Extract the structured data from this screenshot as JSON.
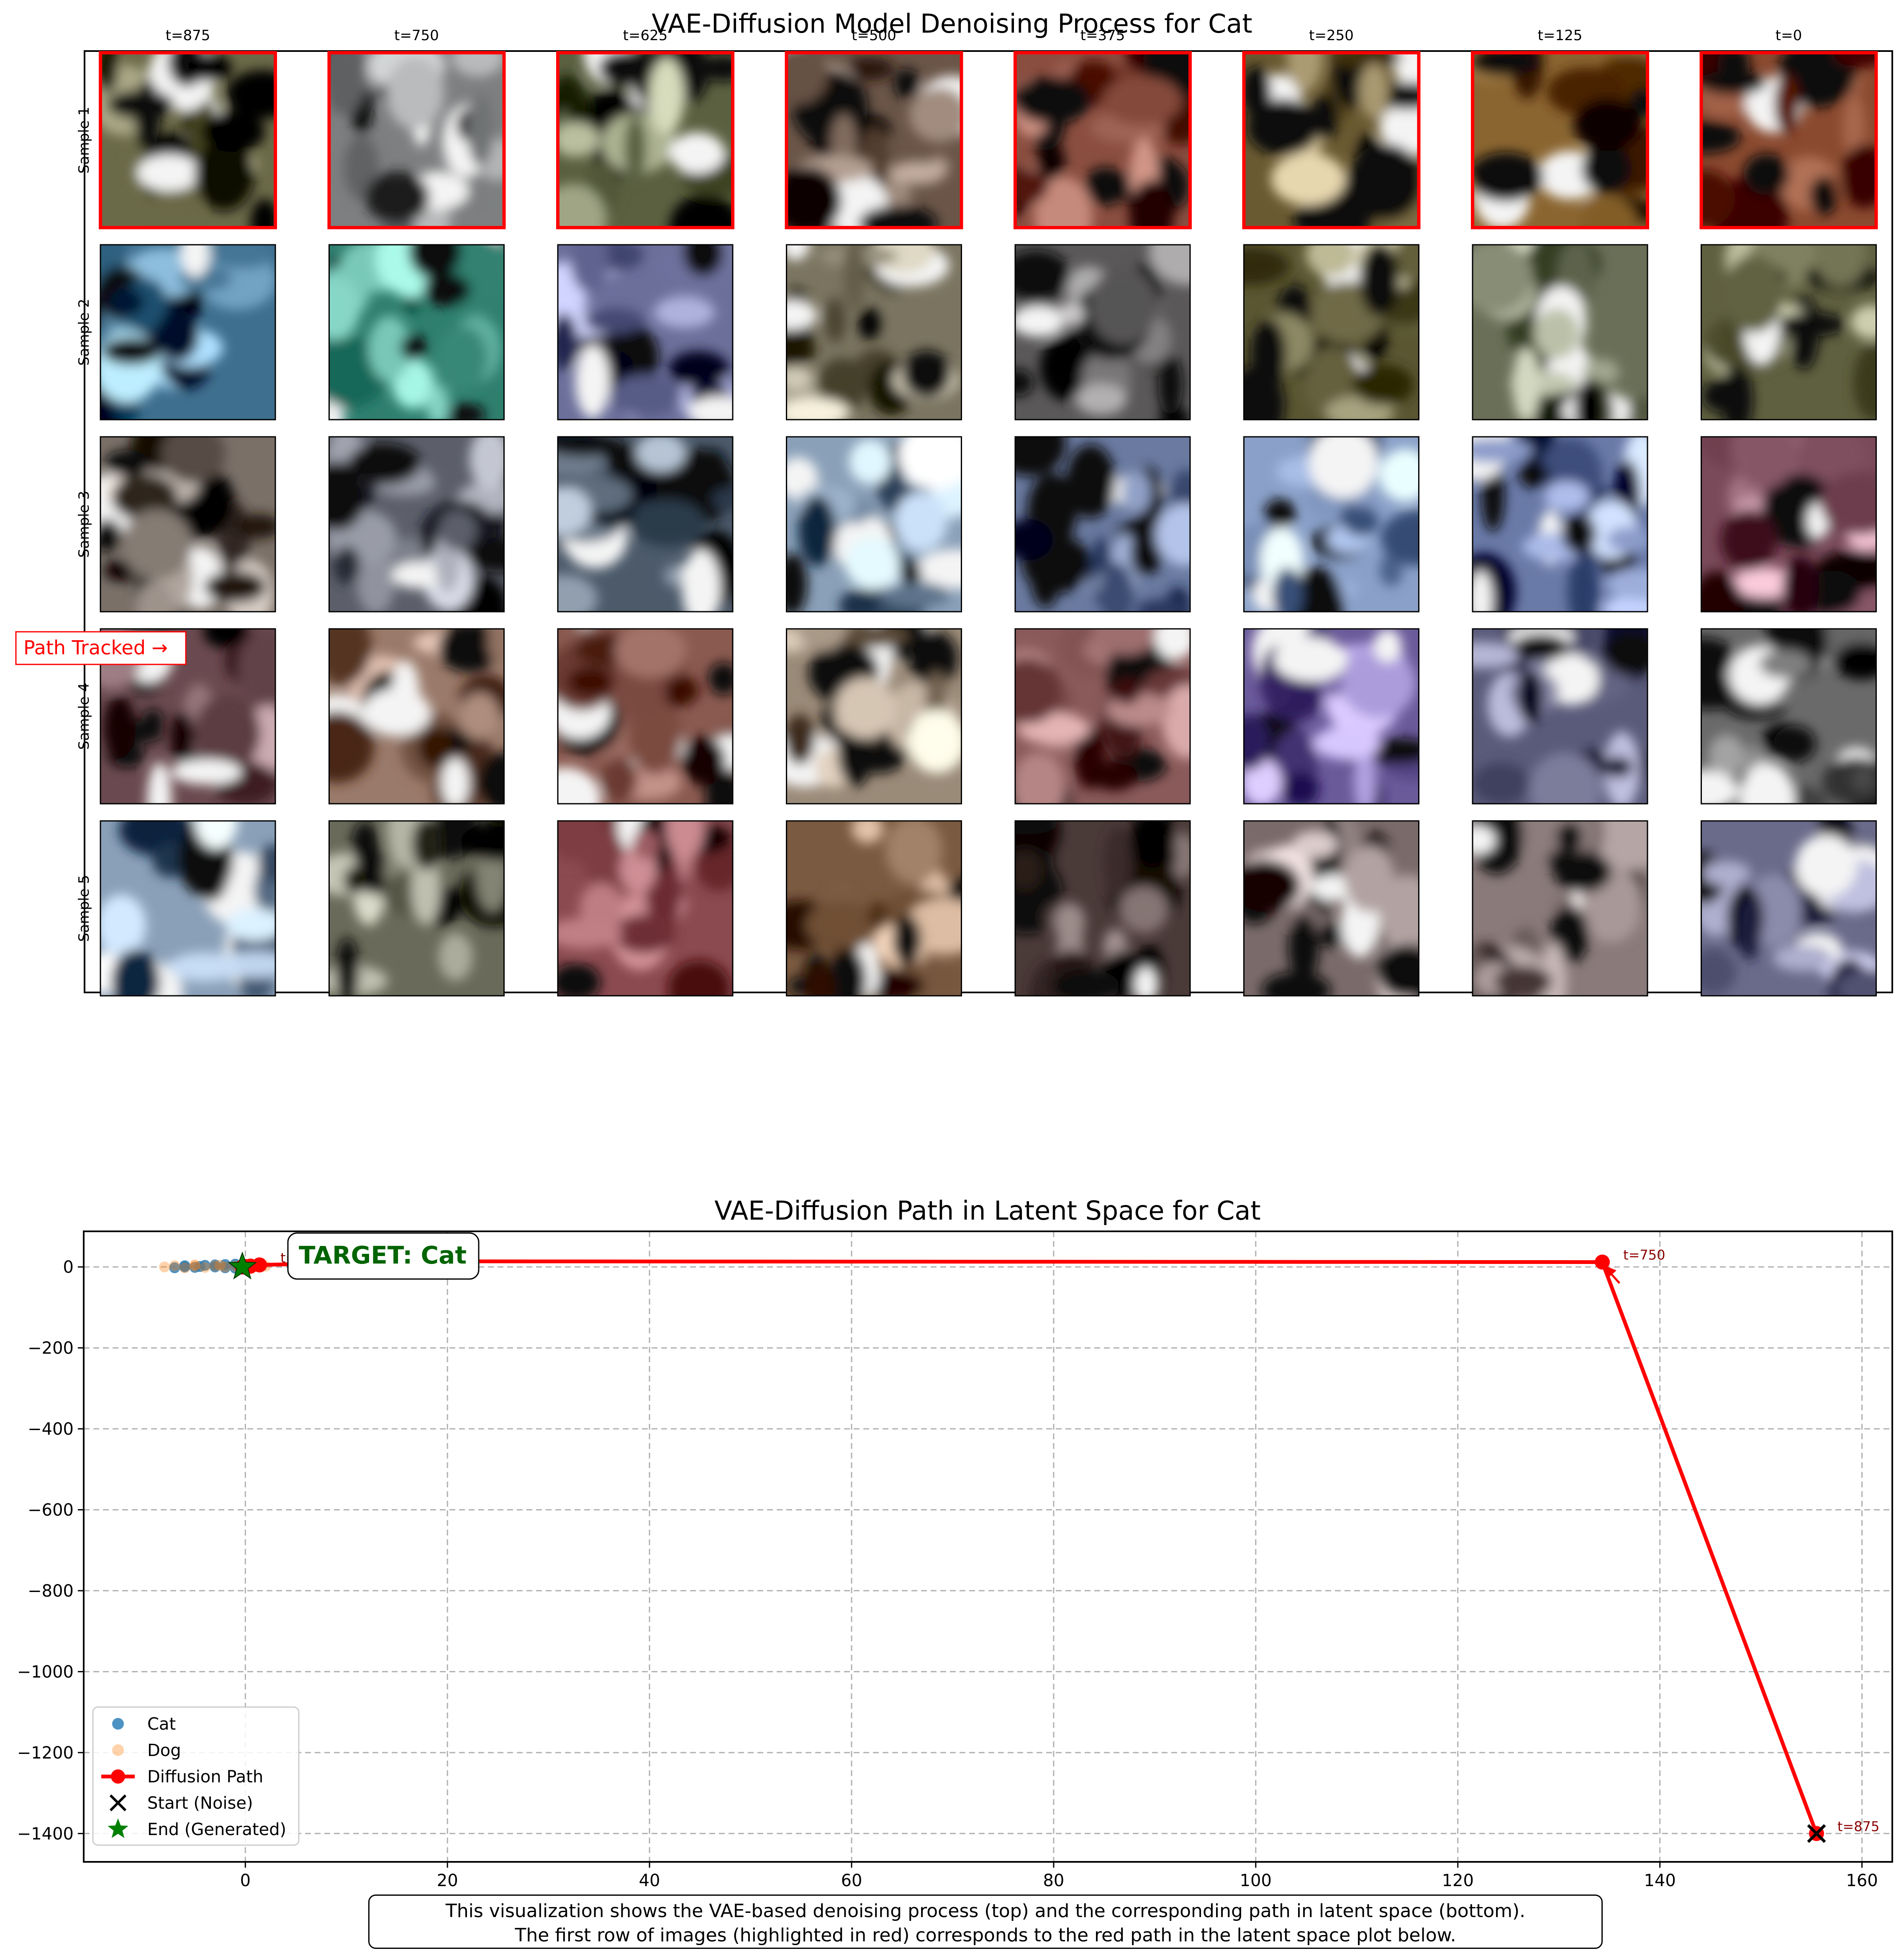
{
  "figure": {
    "top_title": "VAE-Diffusion Model Denoising Process for Cat",
    "path_tracked_label": "Path Tracked →",
    "caption_line1": "This visualization shows the VAE-based denoising process (top) and the corresponding path in latent space (bottom).",
    "caption_line2": "The first row of images (highlighted in red) corresponds to the red path in the latent space plot below.",
    "highlight_color": "#ff0000"
  },
  "chart_data": [
    {
      "type": "table",
      "title": "VAE-Diffusion Model Denoising Process for Cat",
      "columns": [
        "t=875",
        "t=750",
        "t=625",
        "t=500",
        "t=375",
        "t=250",
        "t=125",
        "t=0"
      ],
      "rows": [
        "Sample 1",
        "Sample 2",
        "Sample 3",
        "Sample 4",
        "Sample 5"
      ],
      "highlighted_row": "Sample 1",
      "cell_palettes": [
        [
          "#6b6a48",
          "#7d7f80",
          "#5a6040",
          "#6a5548",
          "#8a4e40",
          "#6a5a32",
          "#8a6530",
          "#8a4a30"
        ],
        [
          "#3e6f8e",
          "#2f7f6f",
          "#6b6f9a",
          "#7a7460",
          "#5a5858",
          "#5a5632",
          "#6a7058",
          "#5f6040"
        ],
        [
          "#7a7068",
          "#5c5f6a",
          "#4c5a6a",
          "#8aa0b8",
          "#6a7aa0",
          "#8aa0c8",
          "#6a7aa8",
          "#7a4a5a"
        ],
        [
          "#6a4a50",
          "#9a7a6a",
          "#8a5a50",
          "#9a8a78",
          "#8a5a5a",
          "#6a5a9a",
          "#5a5a7a",
          "#6a6a6a"
        ],
        [
          "#8aa0b8",
          "#6a6a5a",
          "#8a4a50",
          "#7a5a40",
          "#4a3a38",
          "#7a6a6a",
          "#8a7a7a",
          "#6a6a8a"
        ]
      ]
    },
    {
      "type": "line",
      "title": "VAE-Diffusion Path in Latent Space for Cat",
      "xlim": [
        -16,
        163
      ],
      "ylim": [
        -1470,
        88
      ],
      "xticks": [
        0,
        20,
        40,
        60,
        80,
        100,
        120,
        140,
        160
      ],
      "yticks": [
        0,
        -200,
        -400,
        -600,
        -800,
        -1000,
        -1200,
        -1400
      ],
      "grid": true,
      "legend_position": "lower-left",
      "legend": [
        "Cat",
        "Dog",
        "Diffusion Path",
        "Start (Noise)",
        "End (Generated)"
      ],
      "series": [
        {
          "name": "Cat",
          "type": "scatter",
          "color": "#1f77b4",
          "points": [
            [
              -7,
              -2
            ],
            [
              -6,
              3
            ],
            [
              -5,
              -1
            ],
            [
              -4,
              4
            ],
            [
              -3,
              0
            ],
            [
              -2,
              6
            ],
            [
              -1,
              -3
            ],
            [
              0,
              2
            ],
            [
              -6,
              0
            ],
            [
              -3,
              5
            ],
            [
              -2,
              -2
            ],
            [
              -4.5,
              1
            ],
            [
              1,
              4
            ],
            [
              -1,
              7
            ]
          ]
        },
        {
          "name": "Dog",
          "type": "scatter",
          "color": "#ff7f0e",
          "points": [
            [
              -8,
              0
            ],
            [
              -7,
              3
            ],
            [
              -6,
              -2
            ],
            [
              -5,
              2
            ],
            [
              -4,
              -1
            ],
            [
              -3,
              3
            ],
            [
              -2,
              0
            ],
            [
              -1,
              2
            ],
            [
              0,
              -1
            ],
            [
              1,
              1
            ],
            [
              2,
              2
            ],
            [
              -5,
              5
            ],
            [
              -2.5,
              4
            ]
          ]
        },
        {
          "name": "Diffusion Path",
          "type": "line",
          "color": "#ff0000",
          "points": [
            [
              155.5,
              -1400
            ],
            [
              134.3,
              12
            ],
            [
              13.8,
              14
            ],
            [
              8.4,
              9
            ],
            [
              1.4,
              5
            ],
            [
              0.5,
              2
            ],
            [
              0,
              1
            ],
            [
              -0.3,
              0
            ]
          ],
          "labels": [
            "t=875",
            "t=750",
            "",
            "",
            "t=375",
            "",
            "",
            ""
          ]
        },
        {
          "name": "Start (Noise)",
          "type": "marker",
          "color": "#000000",
          "points": [
            [
              155.5,
              -1400
            ]
          ]
        },
        {
          "name": "End (Generated)",
          "type": "marker",
          "color": "#008000",
          "points": [
            [
              -0.3,
              0
            ]
          ]
        }
      ],
      "annotation": "TARGET: Cat",
      "annotation_color": "#006400"
    }
  ]
}
